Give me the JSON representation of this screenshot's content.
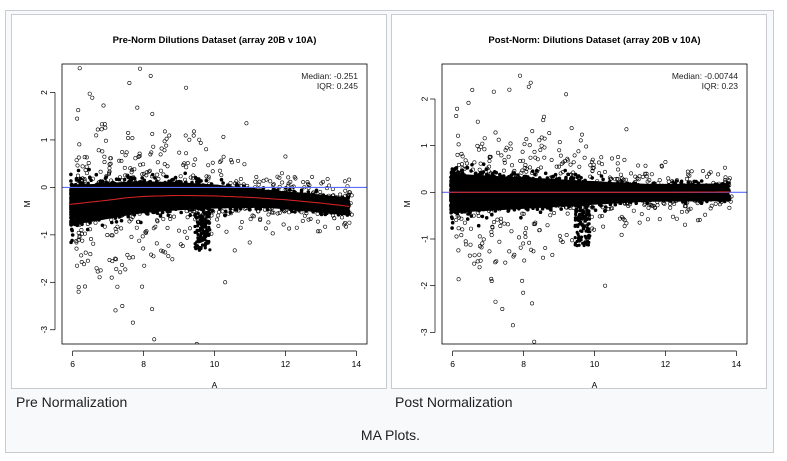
{
  "gallery": {
    "caption": "MA Plots.",
    "panels": [
      {
        "caption": "Pre Normalization",
        "chart_data": {
          "type": "scatter",
          "title": "Pre-Norm Dilutions Dataset (array 20B v 10A)",
          "xlabel": "A",
          "ylabel": "M",
          "xlim": [
            5.7,
            14.3
          ],
          "ylim": [
            -3.3,
            2.6
          ],
          "xticks": [
            "6",
            "8",
            "10",
            "12",
            "14"
          ],
          "yticks": [
            "-3",
            "-2",
            "-1",
            "0",
            "1",
            "2"
          ],
          "annotations": [
            "Median: -0.251",
            "IQR: 0.245"
          ],
          "reference_line": {
            "y": 0,
            "color": "#5b6cff"
          },
          "loess_fit": {
            "color": "#cc2222",
            "x": [
              5.9,
              6.5,
              7,
              7.5,
              8,
              9,
              10,
              11,
              12,
              13,
              13.8
            ],
            "y": [
              -0.36,
              -0.31,
              -0.27,
              -0.22,
              -0.19,
              -0.17,
              -0.18,
              -0.21,
              -0.26,
              -0.33,
              -0.4
            ]
          },
          "points": {
            "count": "approx. 20000",
            "center_curve": "follows loess_fit",
            "color": "#000000"
          }
        }
      },
      {
        "caption": "Post Normalization",
        "chart_data": {
          "type": "scatter",
          "title": "Post-Norm: Dilutions Dataset (array 20B v 10A)",
          "xlabel": "A",
          "ylabel": "M",
          "xlim": [
            5.7,
            14.3
          ],
          "ylim": [
            -3.25,
            2.75
          ],
          "xticks": [
            "6",
            "8",
            "10",
            "12",
            "14"
          ],
          "yticks": [
            "-3",
            "-2",
            "-1",
            "0",
            "1",
            "2"
          ],
          "annotations": [
            "Median: -0.00744",
            "IQR: 0.23"
          ],
          "reference_line": {
            "y": 0,
            "color": "#5b6cff"
          },
          "loess_fit": {
            "color": "#cc2222",
            "x": [
              5.9,
              8,
              10,
              12,
              13.8
            ],
            "y": [
              0.0,
              0.0,
              0.0,
              0.0,
              0.01
            ]
          },
          "points": {
            "count": "approx. 20000",
            "center_curve": "follows loess_fit",
            "color": "#000000"
          }
        }
      }
    ]
  }
}
